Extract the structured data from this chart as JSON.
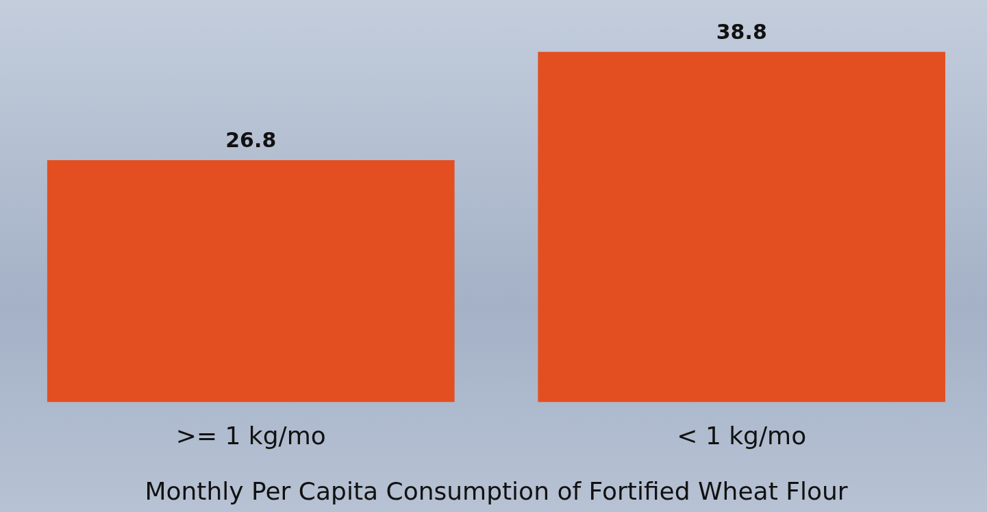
{
  "chart_data": {
    "type": "bar",
    "xlabel": "Monthly Per Capita Consumption of Fortified Wheat Flour",
    "categories": [
      ">= 1 kg/mo",
      "< 1 kg/mo"
    ],
    "values": [
      26.8,
      38.8
    ],
    "color": "#e34f21",
    "data_labels": true,
    "relative": false,
    "grid": false,
    "legend": false
  }
}
